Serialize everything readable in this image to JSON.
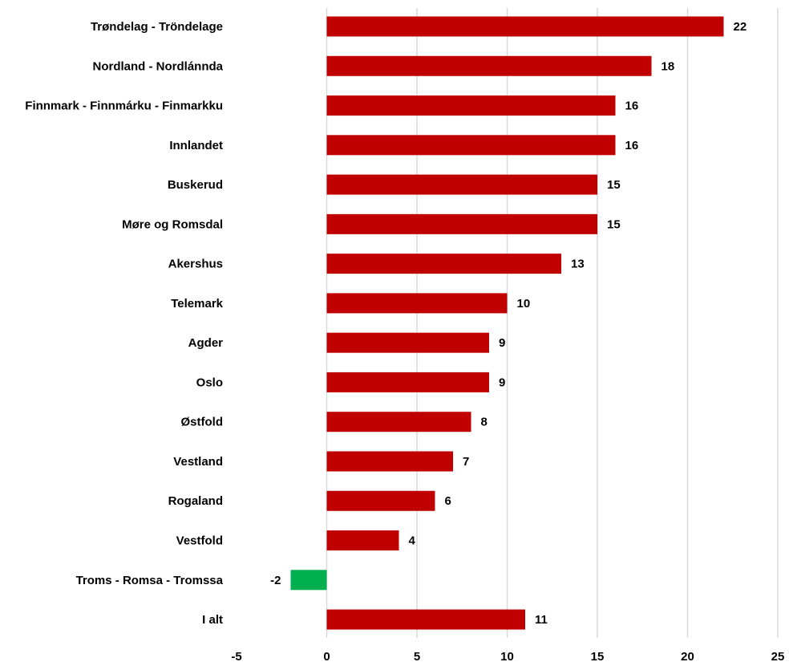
{
  "chart_data": {
    "type": "bar",
    "orientation": "horizontal",
    "categories": [
      "Trøndelag - Tröndelage",
      "Nordland - Nordlánnda",
      "Finnmark - Finnmárku - Finmarkku",
      "Innlandet",
      "Buskerud",
      "Møre og Romsdal",
      "Akershus",
      "Telemark",
      "Agder",
      "Oslo",
      "Østfold",
      "Vestland",
      "Rogaland",
      "Vestfold",
      "Troms - Romsa - Tromssa",
      "I alt"
    ],
    "values": [
      22,
      18,
      16,
      16,
      15,
      15,
      13,
      10,
      9,
      9,
      8,
      7,
      6,
      4,
      -2,
      11
    ],
    "xlim": [
      -5,
      25
    ],
    "x_ticks": [
      -5,
      0,
      5,
      10,
      15,
      20,
      25
    ],
    "grid": true,
    "colors": {
      "positive": "#c00000",
      "negative": "#00b050",
      "grid": "#d9d9d9",
      "text": "#000000"
    }
  }
}
